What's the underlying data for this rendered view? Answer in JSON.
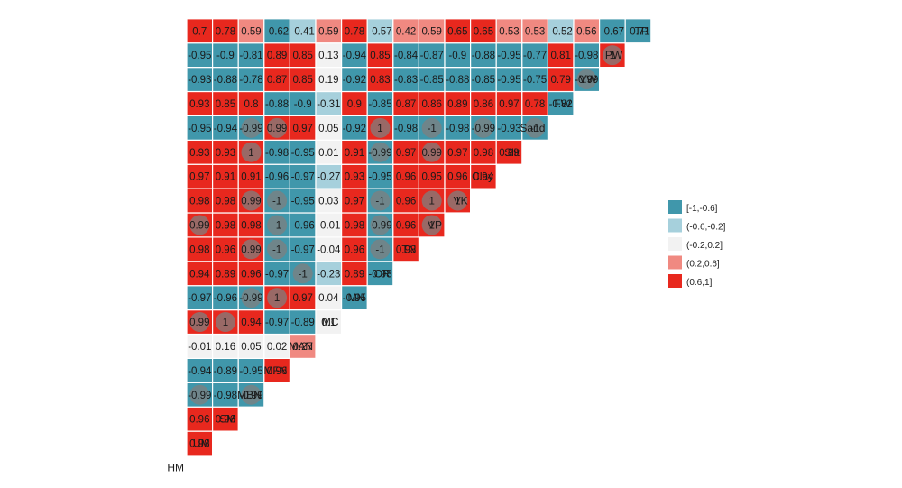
{
  "chart_data": {
    "type": "heatmap",
    "title": "",
    "variables": [
      "HM",
      "UM",
      "SM",
      "MBN",
      "MFN",
      "MAN",
      "MC",
      "MN",
      "OR",
      "TN",
      "VP",
      "VK",
      "Clay",
      "Slit",
      "Sand",
      "FW",
      "VW",
      "PW",
      "TP"
    ],
    "rows": [
      {
        "name": "UM",
        "values": [
          0.98
        ]
      },
      {
        "name": "SM",
        "values": [
          0.96,
          0.96
        ]
      },
      {
        "name": "MBN",
        "values": [
          -0.99,
          -0.98,
          -0.99
        ]
      },
      {
        "name": "MFN",
        "values": [
          -0.94,
          -0.89,
          -0.95,
          0.96
        ]
      },
      {
        "name": "MAN",
        "values": [
          -0.01,
          0.16,
          0.05,
          0.02,
          0.27
        ]
      },
      {
        "name": "MC",
        "values": [
          0.99,
          1,
          0.94,
          -0.97,
          -0.89,
          0.1
        ]
      },
      {
        "name": "MN",
        "values": [
          -0.97,
          -0.96,
          -0.99,
          1,
          0.97,
          0.04,
          -0.95
        ]
      },
      {
        "name": "OR",
        "values": [
          0.94,
          0.89,
          0.96,
          -0.97,
          -1,
          -0.23,
          0.89,
          -0.98
        ]
      },
      {
        "name": "TN",
        "values": [
          0.98,
          0.96,
          0.99,
          -1,
          -0.97,
          -0.04,
          0.96,
          -1,
          0.98
        ]
      },
      {
        "name": "VP",
        "values": [
          0.99,
          0.98,
          0.98,
          -1,
          -0.96,
          -0.01,
          0.98,
          -0.99,
          0.96,
          1
        ]
      },
      {
        "name": "VK",
        "values": [
          0.98,
          0.98,
          0.99,
          -1,
          -0.95,
          0.03,
          0.97,
          -1,
          0.96,
          1,
          1
        ]
      },
      {
        "name": "Clay",
        "values": [
          0.97,
          0.91,
          0.91,
          -0.96,
          -0.97,
          -0.27,
          0.93,
          -0.95,
          0.96,
          0.95,
          0.96,
          0.94
        ]
      },
      {
        "name": "Slit",
        "values": [
          0.93,
          0.93,
          1,
          -0.98,
          -0.95,
          0.01,
          0.91,
          -0.99,
          0.97,
          0.99,
          0.97,
          0.98,
          0.89
        ]
      },
      {
        "name": "Sand",
        "values": [
          -0.95,
          -0.94,
          -0.99,
          0.99,
          0.97,
          0.05,
          -0.92,
          1,
          -0.98,
          -1,
          -0.98,
          -0.99,
          -0.93,
          -1
        ]
      },
      {
        "name": "FW",
        "values": [
          0.93,
          0.85,
          0.8,
          -0.88,
          -0.9,
          -0.31,
          0.9,
          -0.85,
          0.87,
          0.86,
          0.89,
          0.86,
          0.97,
          0.78,
          -0.82
        ]
      },
      {
        "name": "VW",
        "values": [
          -0.93,
          -0.88,
          -0.78,
          0.87,
          0.85,
          0.19,
          -0.92,
          0.83,
          -0.83,
          -0.85,
          -0.88,
          -0.85,
          -0.95,
          -0.75,
          0.79,
          -0.99
        ]
      },
      {
        "name": "PW",
        "values": [
          -0.95,
          -0.9,
          -0.81,
          0.89,
          0.85,
          0.13,
          -0.94,
          0.85,
          -0.84,
          -0.87,
          -0.9,
          -0.88,
          -0.95,
          -0.77,
          0.81,
          -0.98,
          1
        ]
      },
      {
        "name": "TP",
        "values": [
          0.7,
          0.78,
          0.59,
          -0.62,
          -0.41,
          0.59,
          0.78,
          -0.57,
          0.42,
          0.59,
          0.65,
          0.65,
          0.53,
          0.53,
          -0.52,
          0.56,
          -0.67,
          -0.71
        ]
      }
    ],
    "legend": {
      "position": "right",
      "items": [
        {
          "label": "[-1,-0.6]",
          "color": "#4097AB"
        },
        {
          "label": "(-0.6,-0.2]",
          "color": "#A6D0DC"
        },
        {
          "label": "(-0.2,0.2]",
          "color": "#F2F2F2"
        },
        {
          "label": "(0.2,0.6]",
          "color": "#F08981"
        },
        {
          "label": "(0.6,1]",
          "color": "#E8281E"
        }
      ]
    },
    "circle_marker_color": "#7F7F7F",
    "grid": false
  }
}
